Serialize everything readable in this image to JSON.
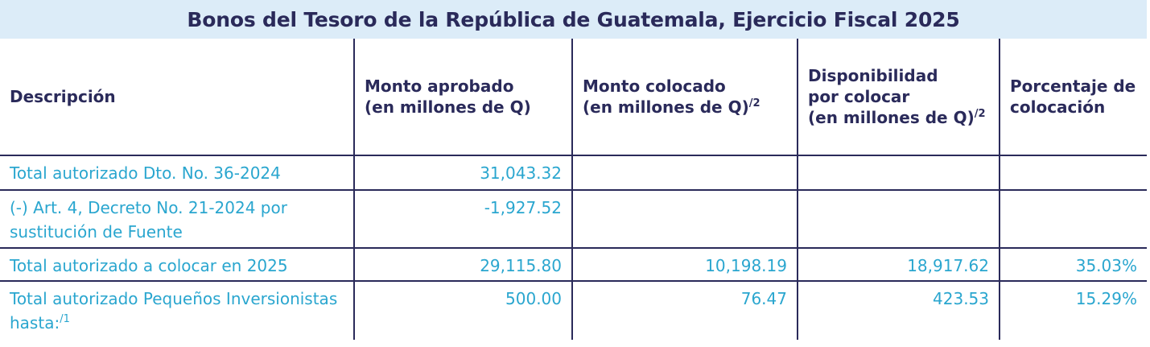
{
  "title": "Bonos del Tesoro de la República de Guatemala, Ejercicio Fiscal 2025",
  "headers": {
    "descripcion": "Descripción",
    "monto_aprobado": {
      "line1": "Monto aprobado",
      "line2": "(en millones de Q)"
    },
    "monto_colocado": {
      "line1": "Monto colocado",
      "line2": "(en millones de Q)",
      "sup": "/2"
    },
    "disponibilidad": {
      "line1": "Disponibilidad",
      "line2": "por colocar",
      "line3": "(en millones de Q)",
      "sup": "/2"
    },
    "porcentaje": {
      "line1": "Porcentaje de",
      "line2": "colocación"
    }
  },
  "rows": [
    {
      "descripcion": "Total autorizado Dto. No. 36-2024",
      "monto_aprobado": "31,043.32",
      "monto_colocado": "",
      "disponibilidad": "",
      "porcentaje": ""
    },
    {
      "descripcion": "(-) Art. 4, Decreto No. 21-2024 por sustitución de Fuente",
      "monto_aprobado": "-1,927.52",
      "monto_colocado": "",
      "disponibilidad": "",
      "porcentaje": ""
    },
    {
      "descripcion": "Total autorizado a colocar en 2025",
      "monto_aprobado": "29,115.80",
      "monto_colocado": "10,198.19",
      "disponibilidad": "18,917.62",
      "porcentaje": "35.03%"
    },
    {
      "descripcion": "Total autorizado Pequeños Inversionistas hasta:",
      "descripcion_sup": "/1",
      "monto_aprobado": "500.00",
      "monto_colocado": "76.47",
      "disponibilidad": "423.53",
      "porcentaje": "15.29%"
    }
  ],
  "colors": {
    "title_bg": "#dcecf8",
    "header_text": "#2a2a5a",
    "body_text": "#2aa6cf",
    "rules": "#2a2a5a"
  }
}
